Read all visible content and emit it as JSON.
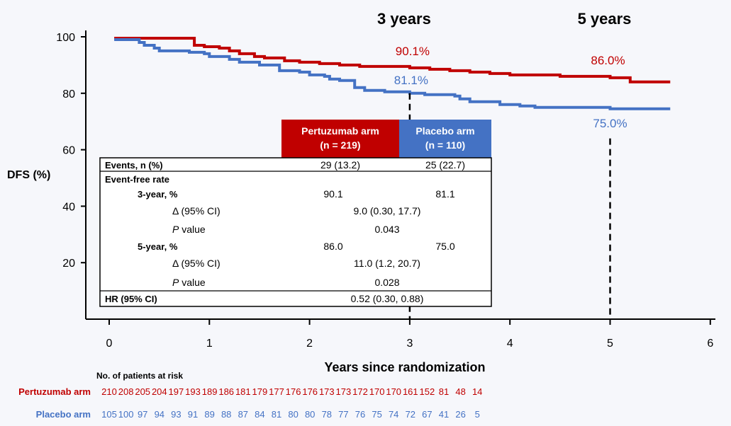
{
  "chart_data": {
    "type": "line",
    "title": "",
    "xlabel": "Years since randomization",
    "ylabel": "DFS (%)",
    "xlim": [
      0,
      6
    ],
    "ylim": [
      0,
      100
    ],
    "x_ticks": [
      "0",
      "1",
      "2",
      "3",
      "4",
      "5",
      "6"
    ],
    "y_ticks": [
      "20",
      "40",
      "60",
      "80",
      "100"
    ],
    "grid": false,
    "colors": {
      "pertuzumab": "#c00000",
      "placebo": "#4472c4"
    },
    "series": [
      {
        "key": "pertuzumab",
        "x": [
          0.05,
          0.8,
          0.85,
          0.95,
          1.1,
          1.2,
          1.3,
          1.45,
          1.55,
          1.75,
          1.9,
          2.1,
          2.3,
          2.5,
          2.8,
          3.0,
          3.2,
          3.4,
          3.6,
          3.8,
          4.0,
          4.2,
          4.5,
          4.8,
          5.0,
          5.2,
          5.4,
          5.6
        ],
        "y": [
          99.5,
          99.5,
          97,
          96.5,
          96,
          95,
          94,
          93,
          92.5,
          91.5,
          91,
          90.5,
          90,
          89.5,
          89.5,
          89,
          88.5,
          88,
          87.5,
          87,
          86.5,
          86.5,
          86,
          86,
          85.5,
          84,
          84,
          84
        ]
      },
      {
        "key": "placebo",
        "x": [
          0.05,
          0.3,
          0.35,
          0.45,
          0.5,
          0.7,
          0.8,
          0.95,
          1.0,
          1.2,
          1.3,
          1.5,
          1.7,
          1.9,
          2.0,
          2.15,
          2.2,
          2.3,
          2.45,
          2.55,
          2.75,
          2.9,
          3.0,
          3.15,
          3.3,
          3.45,
          3.5,
          3.6,
          3.9,
          4.1,
          4.25,
          4.5,
          4.8,
          5.0,
          5.3,
          5.6
        ],
        "y": [
          99,
          98,
          97,
          96,
          95,
          95,
          94.5,
          94,
          93,
          92,
          91,
          90,
          88,
          87.5,
          86.5,
          86,
          85,
          84.5,
          82,
          81,
          80.5,
          80.5,
          80,
          79.5,
          79.5,
          79,
          78,
          77,
          76,
          75.5,
          75,
          75,
          75,
          74.5,
          74.5,
          74.5
        ]
      }
    ],
    "landmarks": [
      {
        "label": "3 years",
        "x": 3,
        "y_top": 80,
        "values": [
          "90.1%",
          "81.1%"
        ]
      },
      {
        "label": "5 years",
        "x": 5,
        "y_top": 64,
        "values": [
          "86.0%",
          "75.0%"
        ]
      }
    ]
  },
  "summary_table": {
    "headers": [
      {
        "line1": "Pertuzumab arm",
        "line2": "(n = 219)"
      },
      {
        "line1": "Placebo arm",
        "line2": "(n = 110)"
      }
    ],
    "events": {
      "label": "Events, n (%)",
      "pert": "29 (13.2)",
      "plac": "25 (22.7)"
    },
    "efr_label": "Event-free rate",
    "y3": {
      "label": "3-year, %",
      "pert": "90.1",
      "plac": "81.1"
    },
    "y3_delta": {
      "label": "Δ (95% CI)",
      "value": "9.0 (0.30, 17.7)"
    },
    "y3_p": {
      "p": "P",
      "rest": " value",
      "value": "0.043"
    },
    "y5": {
      "label": "5-year, %",
      "pert": "86.0",
      "plac": "75.0"
    },
    "y5_delta": {
      "label": "Δ (95% CI)",
      "value": "11.0 (1.2, 20.7)"
    },
    "y5_p": {
      "p": "P",
      "rest": " value",
      "value": "0.028"
    },
    "hr": {
      "label": "HR (95% CI)",
      "value": "0.52 (0.30, 0.88)"
    }
  },
  "risk_table": {
    "title": "No. of patients at risk",
    "rows": [
      {
        "key": "pertuzumab",
        "label": "Pertuzumab arm",
        "values": [
          "210",
          "208",
          "205",
          "204",
          "197",
          "193",
          "189",
          "186",
          "181",
          "179",
          "177",
          "176",
          "176",
          "173",
          "173",
          "172",
          "170",
          "170",
          "161",
          "152",
          "81",
          "48",
          "14"
        ]
      },
      {
        "key": "placebo",
        "label": "Placebo arm",
        "values": [
          "105",
          "100",
          "97",
          "94",
          "93",
          "91",
          "89",
          "88",
          "87",
          "84",
          "81",
          "80",
          "80",
          "78",
          "77",
          "76",
          "75",
          "74",
          "72",
          "67",
          "41",
          "26",
          "5"
        ]
      }
    ]
  }
}
